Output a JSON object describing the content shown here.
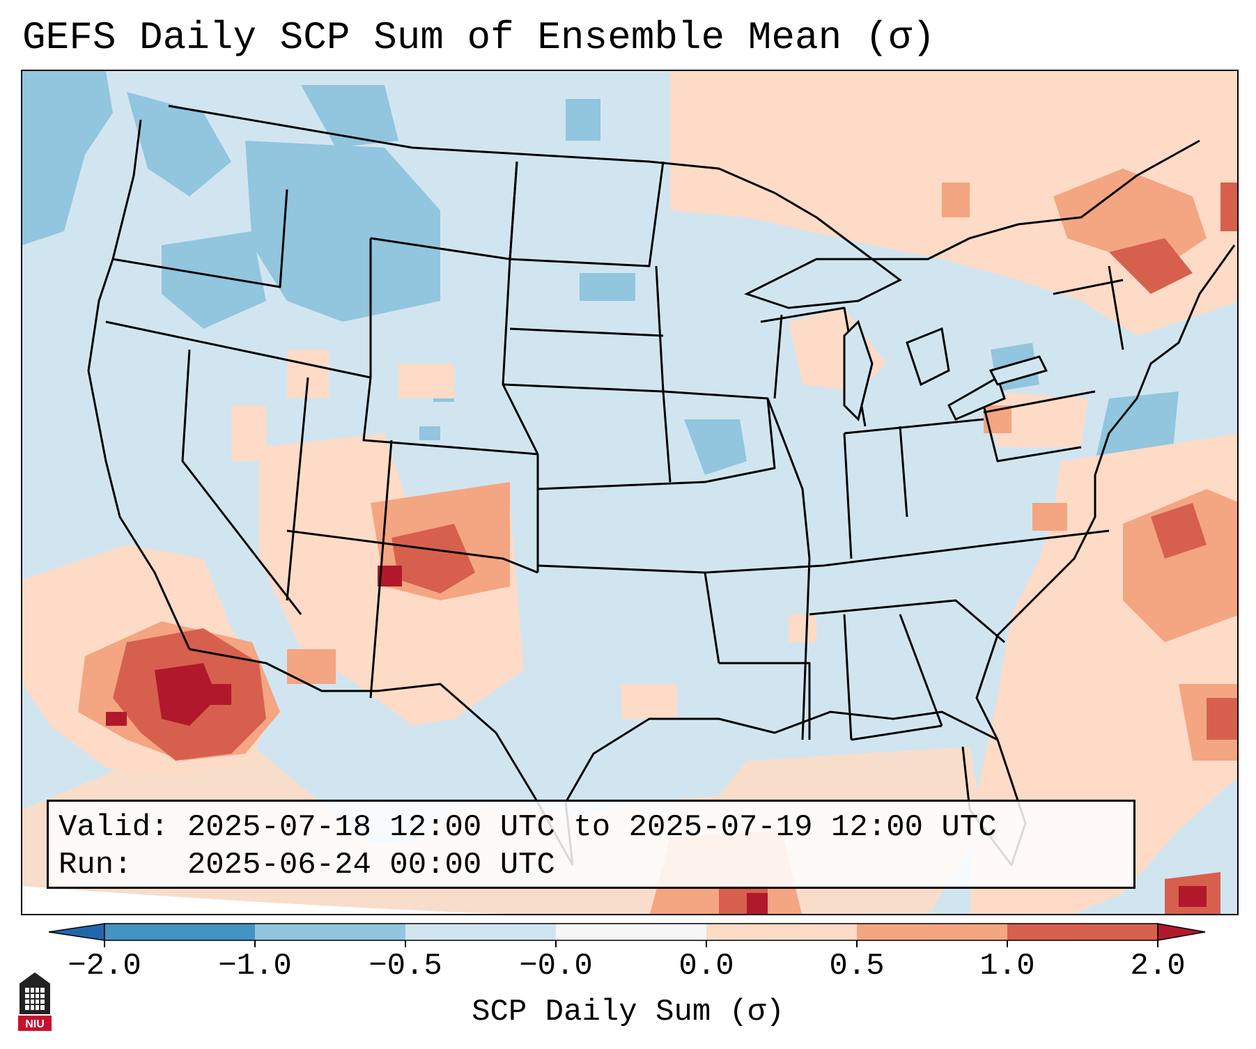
{
  "title": "GEFS Daily SCP Sum of Ensemble Mean (σ)",
  "info": {
    "valid_label": "Valid:",
    "valid_value": "2025-07-18 12:00 UTC to 2025-07-19 12:00 UTC",
    "run_label": "Run:",
    "run_value": "2025-06-24 00:00 UTC"
  },
  "colorbar": {
    "label": "SCP Daily Sum (σ)",
    "ticks": [
      "−2.0",
      "−1.0",
      "−0.5",
      "−0.0",
      "0.0",
      "0.5",
      "1.0",
      "2.0"
    ],
    "bins": [
      {
        "range": "< -2.0",
        "color": "#2166ac"
      },
      {
        "range": "-2.0 to -1.0",
        "color": "#4393c3"
      },
      {
        "range": "-1.0 to -0.5",
        "color": "#92c5de"
      },
      {
        "range": "-0.5 to -0.0",
        "color": "#d1e5f0"
      },
      {
        "range": "-0.0 to 0.0",
        "color": "#f7f7f7"
      },
      {
        "range": "0.0 to 0.5",
        "color": "#fddbc7"
      },
      {
        "range": "0.5 to 1.0",
        "color": "#f4a582"
      },
      {
        "range": "1.0 to 2.0",
        "color": "#d6604d"
      },
      {
        "range": "> 2.0",
        "color": "#b2182b"
      }
    ]
  },
  "map": {
    "region": "Contiguous United States",
    "background_value_color": "#d1e5f0",
    "outline_color": "#000000"
  },
  "logo": {
    "text": "NIU",
    "color": "#c8102e"
  }
}
